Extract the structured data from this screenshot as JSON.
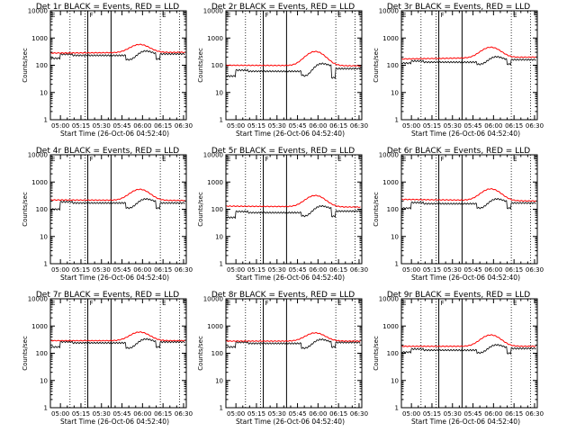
{
  "colors": {
    "events": "#000000",
    "lld": "#ff0000",
    "axes": "#000000",
    "background": "#ffffff"
  },
  "common": {
    "ylabel": "Counts/sec",
    "xlabel": "Start Time (26-Oct-06 04:52:40)",
    "xticks": [
      "05:00",
      "05:15",
      "05:30",
      "05:45",
      "06:00",
      "06:15",
      "06:30"
    ],
    "yticks": [
      "1",
      "10",
      "100",
      "1000",
      "10000"
    ],
    "flags": {
      "left": "E",
      "mid": "F",
      "right": "E"
    }
  },
  "chart_data": [
    {
      "type": "line",
      "title": "Det 1r BLACK = Events, RED = LLD",
      "yscale": "log",
      "ylim": [
        1,
        10000
      ],
      "xlim": [
        "04:52:40",
        "06:32"
      ],
      "grid": false,
      "events_profile": {
        "pre": 180,
        "base": 230,
        "dip": 145,
        "post": 250,
        "tail": 260,
        "low_end": 170
      },
      "lld_profile": {
        "base": 280,
        "peak": 580,
        "tail": 300
      },
      "series": [
        {
          "name": "Events",
          "color": "#000000"
        },
        {
          "name": "LLD",
          "color": "#ff0000"
        }
      ],
      "markers": {
        "dotted": [
          "05:07",
          "05:18",
          "06:13",
          "06:27"
        ],
        "solid": [
          "05:20",
          "05:37"
        ]
      }
    },
    {
      "type": "line",
      "title": "Det 2r BLACK = Events, RED = LLD",
      "yscale": "log",
      "ylim": [
        1,
        10000
      ],
      "xlim": [
        "04:52:40",
        "06:32"
      ],
      "grid": false,
      "events_profile": {
        "pre": 40,
        "base": 60,
        "dip": 35,
        "post": 90,
        "tail": 75,
        "low_end": 35
      },
      "lld_profile": {
        "base": 100,
        "peak": 320,
        "tail": 95
      },
      "series": [
        {
          "name": "Events",
          "color": "#000000"
        },
        {
          "name": "LLD",
          "color": "#ff0000"
        }
      ],
      "markers": {
        "dotted": [
          "05:07",
          "05:18",
          "06:13",
          "06:27"
        ],
        "solid": [
          "05:20",
          "05:37"
        ]
      }
    },
    {
      "type": "line",
      "title": "Det 3r BLACK = Events, RED = LLD",
      "yscale": "log",
      "ylim": [
        1,
        10000
      ],
      "xlim": [
        "04:52:40",
        "06:32"
      ],
      "grid": false,
      "events_profile": {
        "pre": 120,
        "base": 130,
        "dip": 100,
        "post": 150,
        "tail": 160,
        "low_end": 110
      },
      "lld_profile": {
        "base": 170,
        "peak": 460,
        "tail": 200
      },
      "series": [
        {
          "name": "Events",
          "color": "#000000"
        },
        {
          "name": "LLD",
          "color": "#ff0000"
        }
      ],
      "markers": {
        "dotted": [
          "05:07",
          "05:18",
          "06:13",
          "06:27"
        ],
        "solid": [
          "05:20",
          "05:37"
        ]
      }
    },
    {
      "type": "line",
      "title": "Det 4r BLACK = Events, RED = LLD",
      "yscale": "log",
      "ylim": [
        1,
        10000
      ],
      "xlim": [
        "04:52:40",
        "06:32"
      ],
      "grid": false,
      "events_profile": {
        "pre": 100,
        "base": 170,
        "dip": 100,
        "post": 180,
        "tail": 170,
        "low_end": 110
      },
      "lld_profile": {
        "base": 220,
        "peak": 540,
        "tail": 210
      },
      "series": [
        {
          "name": "Events",
          "color": "#000000"
        },
        {
          "name": "LLD",
          "color": "#ff0000"
        }
      ],
      "markers": {
        "dotted": [
          "05:07",
          "05:18",
          "06:13",
          "06:27"
        ],
        "solid": [
          "05:20",
          "05:37"
        ]
      }
    },
    {
      "type": "line",
      "title": "Det 5r BLACK = Events, RED = LLD",
      "yscale": "log",
      "ylim": [
        1,
        10000
      ],
      "xlim": [
        "04:52:40",
        "06:32"
      ],
      "grid": false,
      "events_profile": {
        "pre": 50,
        "base": 75,
        "dip": 50,
        "post": 100,
        "tail": 85,
        "low_end": 55
      },
      "lld_profile": {
        "base": 130,
        "peak": 320,
        "tail": 120
      },
      "series": [
        {
          "name": "Events",
          "color": "#000000"
        },
        {
          "name": "LLD",
          "color": "#ff0000"
        }
      ],
      "markers": {
        "dotted": [
          "05:07",
          "05:18",
          "06:13",
          "06:27"
        ],
        "solid": [
          "05:20",
          "05:37"
        ]
      }
    },
    {
      "type": "line",
      "title": "Det 6r BLACK = Events, RED = LLD",
      "yscale": "log",
      "ylim": [
        1,
        10000
      ],
      "xlim": [
        "04:52:40",
        "06:32"
      ],
      "grid": false,
      "events_profile": {
        "pre": 110,
        "base": 160,
        "dip": 100,
        "post": 180,
        "tail": 170,
        "low_end": 110
      },
      "lld_profile": {
        "base": 230,
        "peak": 560,
        "tail": 200
      },
      "series": [
        {
          "name": "Events",
          "color": "#000000"
        },
        {
          "name": "LLD",
          "color": "#ff0000"
        }
      ],
      "markers": {
        "dotted": [
          "05:07",
          "05:18",
          "06:13",
          "06:27"
        ],
        "solid": [
          "05:20",
          "05:37"
        ]
      }
    },
    {
      "type": "line",
      "title": "Det 7r BLACK = Events, RED = LLD",
      "yscale": "log",
      "ylim": [
        1,
        10000
      ],
      "xlim": [
        "04:52:40",
        "06:32"
      ],
      "grid": false,
      "events_profile": {
        "pre": 170,
        "base": 240,
        "dip": 140,
        "post": 250,
        "tail": 260,
        "low_end": 170
      },
      "lld_profile": {
        "base": 290,
        "peak": 600,
        "tail": 290
      },
      "series": [
        {
          "name": "Events",
          "color": "#000000"
        },
        {
          "name": "LLD",
          "color": "#ff0000"
        }
      ],
      "markers": {
        "dotted": [
          "05:07",
          "05:18",
          "06:13",
          "06:27"
        ],
        "solid": [
          "05:20",
          "05:37"
        ]
      }
    },
    {
      "type": "line",
      "title": "Det 8r BLACK = Events, RED = LLD",
      "yscale": "log",
      "ylim": [
        1,
        10000
      ],
      "xlim": [
        "04:52:40",
        "06:32"
      ],
      "grid": false,
      "events_profile": {
        "pre": 170,
        "base": 230,
        "dip": 140,
        "post": 240,
        "tail": 250,
        "low_end": 170
      },
      "lld_profile": {
        "base": 280,
        "peak": 560,
        "tail": 280
      },
      "series": [
        {
          "name": "Events",
          "color": "#000000"
        },
        {
          "name": "LLD",
          "color": "#ff0000"
        }
      ],
      "markers": {
        "dotted": [
          "05:07",
          "05:18",
          "06:13",
          "06:27"
        ],
        "solid": [
          "05:20",
          "05:37"
        ]
      }
    },
    {
      "type": "line",
      "title": "Det 9r BLACK = Events, RED = LLD",
      "yscale": "log",
      "ylim": [
        1,
        10000
      ],
      "xlim": [
        "04:52:40",
        "06:32"
      ],
      "grid": false,
      "events_profile": {
        "pre": 110,
        "base": 130,
        "dip": 95,
        "post": 150,
        "tail": 150,
        "low_end": 100
      },
      "lld_profile": {
        "base": 180,
        "peak": 470,
        "tail": 180
      },
      "series": [
        {
          "name": "Events",
          "color": "#000000"
        },
        {
          "name": "LLD",
          "color": "#ff0000"
        }
      ],
      "markers": {
        "dotted": [
          "05:07",
          "05:18",
          "06:13",
          "06:27"
        ],
        "solid": [
          "05:20",
          "05:37"
        ]
      }
    }
  ]
}
